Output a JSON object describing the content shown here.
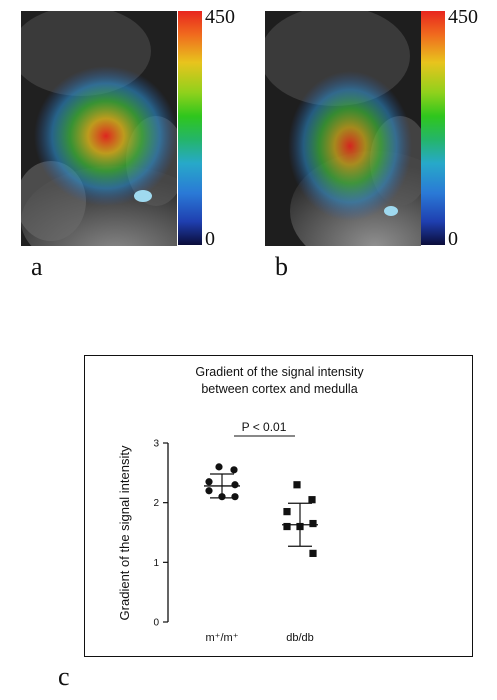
{
  "panels": {
    "a": {
      "letter": "a",
      "colorbar_max": "450",
      "colorbar_min": "0"
    },
    "b": {
      "letter": "b",
      "colorbar_max": "450",
      "colorbar_min": "0"
    },
    "c": {
      "letter": "c"
    }
  },
  "colors": {
    "mri_background": "#1a1a1a",
    "heat_red": "#e8261f",
    "heat_green": "#2fc61d",
    "heat_blue": "#2a79d6"
  },
  "chart_data": {
    "type": "scatter",
    "title_line1": "Gradient of the signal intensity",
    "title_line2": "between cortex and medulla",
    "ylabel": "Gradient of the signal intensity",
    "categories": [
      "m⁺/m⁺",
      "db/db"
    ],
    "ylim": [
      0,
      3
    ],
    "yticks": [
      "0",
      "1",
      "2",
      "3"
    ],
    "significance": "P < 0.01",
    "series": [
      {
        "name": "m⁺/m⁺",
        "marker": "circle",
        "values": [
          2.6,
          2.55,
          2.35,
          2.3,
          2.2,
          2.1,
          2.1
        ],
        "mean": 2.28,
        "sd": 0.2
      },
      {
        "name": "db/db",
        "marker": "square",
        "values": [
          2.3,
          2.05,
          1.85,
          1.65,
          1.6,
          1.6,
          1.15
        ],
        "mean": 1.63,
        "sd": 0.36
      }
    ]
  }
}
